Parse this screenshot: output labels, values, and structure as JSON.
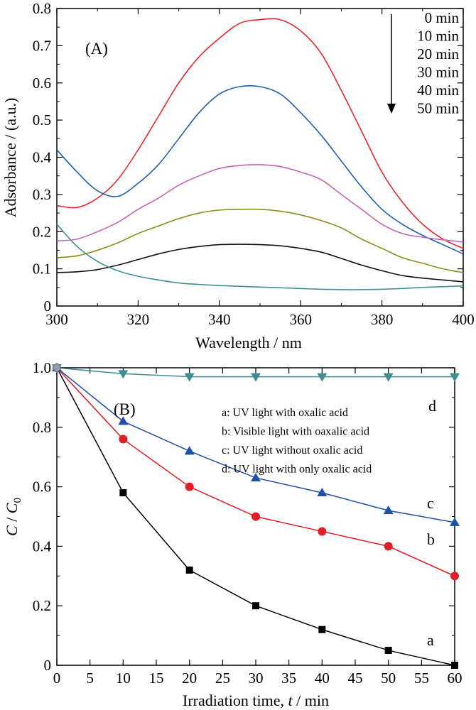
{
  "chart_data": [
    {
      "type": "line",
      "panel_label": "(A)",
      "xlabel": "Wavelength / nm",
      "ylabel": "Adsorbance / (a.u.)",
      "xlim": [
        300,
        400
      ],
      "ylim": [
        0,
        0.8
      ],
      "xticks": [
        300,
        320,
        340,
        360,
        380,
        400
      ],
      "yticks": [
        0,
        0.1,
        0.2,
        0.3,
        0.4,
        0.5,
        0.6,
        0.7,
        0.8
      ],
      "grid": false,
      "legend_placement": "top-right",
      "time_labels": [
        "0 min",
        "10 min",
        "20 min",
        "30 min",
        "40 min",
        "50 min"
      ],
      "x": [
        300,
        305,
        310,
        315,
        320,
        325,
        330,
        335,
        340,
        345,
        350,
        355,
        360,
        365,
        370,
        375,
        380,
        385,
        390,
        395,
        400
      ],
      "series": [
        {
          "color": "#e8282b",
          "values": [
            0.27,
            0.265,
            0.29,
            0.34,
            0.42,
            0.51,
            0.6,
            0.67,
            0.72,
            0.76,
            0.77,
            0.77,
            0.74,
            0.68,
            0.58,
            0.47,
            0.36,
            0.28,
            0.22,
            0.18,
            0.155
          ]
        },
        {
          "color": "#1f5fb0",
          "values": [
            0.42,
            0.36,
            0.31,
            0.295,
            0.33,
            0.38,
            0.45,
            0.52,
            0.57,
            0.59,
            0.59,
            0.57,
            0.52,
            0.46,
            0.39,
            0.32,
            0.26,
            0.22,
            0.19,
            0.165,
            0.14
          ]
        },
        {
          "color": "#c266b4",
          "values": [
            0.175,
            0.18,
            0.2,
            0.225,
            0.26,
            0.29,
            0.325,
            0.35,
            0.37,
            0.378,
            0.38,
            0.375,
            0.36,
            0.34,
            0.3,
            0.26,
            0.22,
            0.195,
            0.185,
            0.178,
            0.172
          ]
        },
        {
          "color": "#8f8a1c",
          "values": [
            0.13,
            0.135,
            0.15,
            0.17,
            0.195,
            0.215,
            0.235,
            0.25,
            0.258,
            0.26,
            0.26,
            0.255,
            0.245,
            0.23,
            0.21,
            0.18,
            0.155,
            0.13,
            0.115,
            0.1,
            0.09
          ]
        },
        {
          "color": "#111111",
          "values": [
            0.09,
            0.092,
            0.098,
            0.11,
            0.125,
            0.14,
            0.152,
            0.16,
            0.165,
            0.166,
            0.165,
            0.162,
            0.155,
            0.145,
            0.128,
            0.11,
            0.095,
            0.082,
            0.075,
            0.07,
            0.065
          ]
        },
        {
          "color": "#3e8f92",
          "values": [
            0.22,
            0.16,
            0.12,
            0.095,
            0.08,
            0.07,
            0.062,
            0.058,
            0.055,
            0.053,
            0.051,
            0.049,
            0.047,
            0.045,
            0.044,
            0.044,
            0.045,
            0.047,
            0.05,
            0.052,
            0.054
          ]
        }
      ]
    },
    {
      "type": "line",
      "panel_label": "(B)",
      "xlabel_main": "Irradiation time, ",
      "xlabel_var": "t",
      "xlabel_unit": " / min",
      "ylabel_c": "C",
      "ylabel_sep": " / ",
      "ylabel_c0": "C",
      "ylabel_c0_sub": "0",
      "xlim": [
        0,
        60
      ],
      "ylim": [
        0,
        1.0
      ],
      "xticks": [
        0,
        5,
        10,
        15,
        20,
        25,
        30,
        35,
        40,
        45,
        50,
        55,
        60
      ],
      "yticks": [
        0,
        0.2,
        0.4,
        0.6,
        0.8,
        1.0
      ],
      "grid": false,
      "legend_placement": "top-right",
      "legend": [
        "a: UV light with oxalic acid",
        "b: Visible light with oaxalic acid",
        "c: UV light without oxalic acid",
        "d: UV light with only oxalic acid"
      ],
      "x": [
        0,
        10,
        20,
        30,
        40,
        50,
        60
      ],
      "series": [
        {
          "name": "a",
          "marker": "square",
          "color": "#000000",
          "values": [
            1.0,
            0.58,
            0.32,
            0.2,
            0.12,
            0.05,
            0.0
          ]
        },
        {
          "name": "b",
          "marker": "circle",
          "color": "#e01e25",
          "values": [
            1.0,
            0.76,
            0.6,
            0.5,
            0.45,
            0.4,
            0.3
          ]
        },
        {
          "name": "c",
          "marker": "triangle-up",
          "color": "#1f4fa8",
          "values": [
            1.0,
            0.82,
            0.72,
            0.63,
            0.58,
            0.52,
            0.48
          ]
        },
        {
          "name": "d",
          "marker": "triangle-down",
          "color": "#3e8f92",
          "values": [
            1.0,
            0.98,
            0.97,
            0.97,
            0.97,
            0.97,
            0.97
          ]
        }
      ]
    }
  ]
}
